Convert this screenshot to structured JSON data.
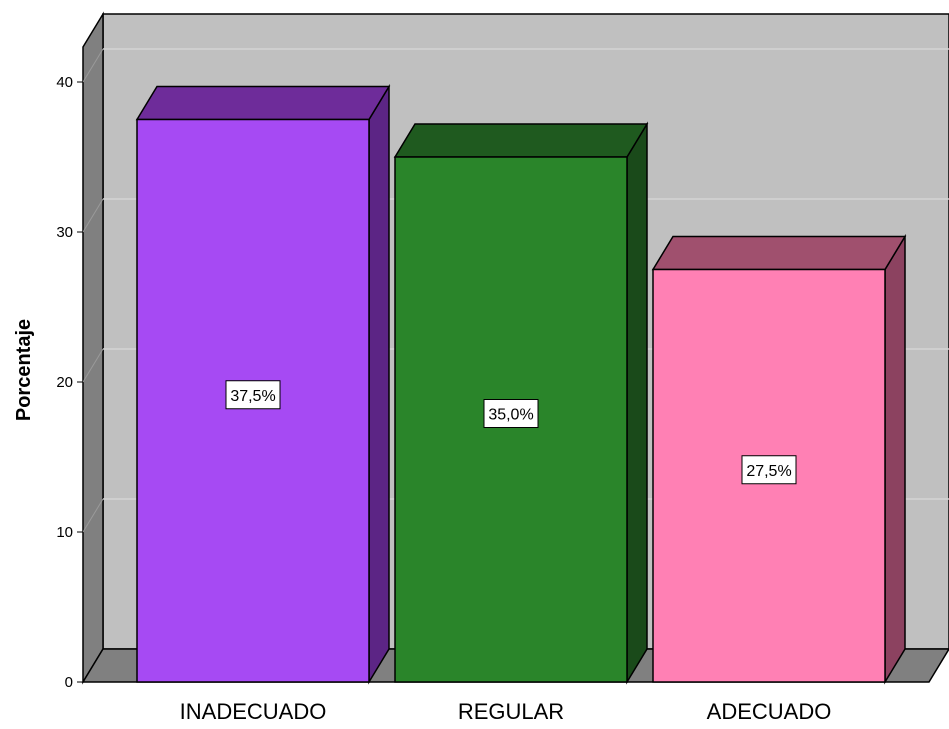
{
  "chart_data": {
    "type": "bar",
    "three_d": true,
    "title": "",
    "xlabel": "",
    "ylabel": "Porcentaje",
    "ylim": [
      0,
      40
    ],
    "yticks": [
      0,
      10,
      20,
      30,
      40
    ],
    "grid": true,
    "legend": "none",
    "categories": [
      "INADECUADO",
      "REGULAR",
      "ADECUADO"
    ],
    "values": [
      37.5,
      35.0,
      27.5
    ],
    "data_labels": [
      "37,5%",
      "35,0%",
      "27,5%"
    ],
    "colors": {
      "bars": [
        "#a64af3",
        "#2a852a",
        "#ff80b4"
      ],
      "bar_tops": [
        "#6e2c9a",
        "#1f5a1f",
        "#a0506e"
      ],
      "bar_sides": [
        "#5c2585",
        "#1a4a1a",
        "#8c4260"
      ],
      "wall": "#c0c0c0",
      "floor": "#808080",
      "gridline": "#d4d4d4"
    }
  }
}
